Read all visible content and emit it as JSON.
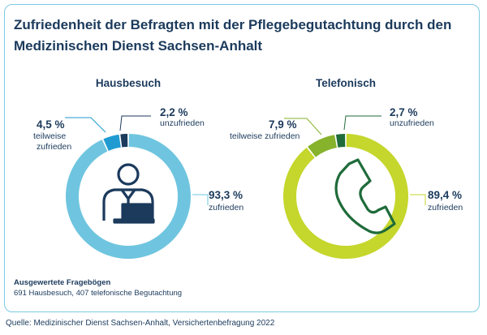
{
  "title_line1": "Zufriedenheit der Befragten mit der Pflegebegutachtung durch den",
  "title_line2": "Medizinischen Dienst Sachsen-Anhalt",
  "chart_data": [
    {
      "type": "pie",
      "title": "Hausbesuch",
      "categories": [
        "zufrieden",
        "teilweise zufrieden",
        "unzufrieden"
      ],
      "values": [
        93.3,
        4.5,
        2.2
      ],
      "value_labels": [
        "93,3 %",
        "4,5 %",
        "2,2 %"
      ],
      "colors": [
        "#6fc5df",
        "#1f9bd1",
        "#1b3a5c"
      ],
      "icon": "person-at-laptop-icon"
    },
    {
      "type": "pie",
      "title": "Telefonisch",
      "categories": [
        "zufrieden",
        "teilweise zufrieden",
        "unzufrieden"
      ],
      "values": [
        89.4,
        7.9,
        2.7
      ],
      "value_labels": [
        "89,4 %",
        "7,9 %",
        "2,7 %"
      ],
      "colors": [
        "#c5d62c",
        "#86b22c",
        "#1f6b3a"
      ],
      "icon": "telephone-handset-icon"
    }
  ],
  "labels": {
    "h_zufrieden": "zufrieden",
    "h_teilweise_1": "teilweise",
    "h_teilweise_2": "zufrieden",
    "h_unzufrieden": "unzufrieden",
    "t_zufrieden": "zufrieden",
    "t_teilweise": "teilweise zufrieden",
    "t_unzufrieden": "unzufrieden"
  },
  "note_title": "Ausgewertete Fragebögen",
  "note_text": "691 Hausbesuch, 407 telefonische Begutachtung",
  "source": "Quelle: Medizinischer Dienst Sachsen-Anhalt, Versichertenbefragung 2022"
}
